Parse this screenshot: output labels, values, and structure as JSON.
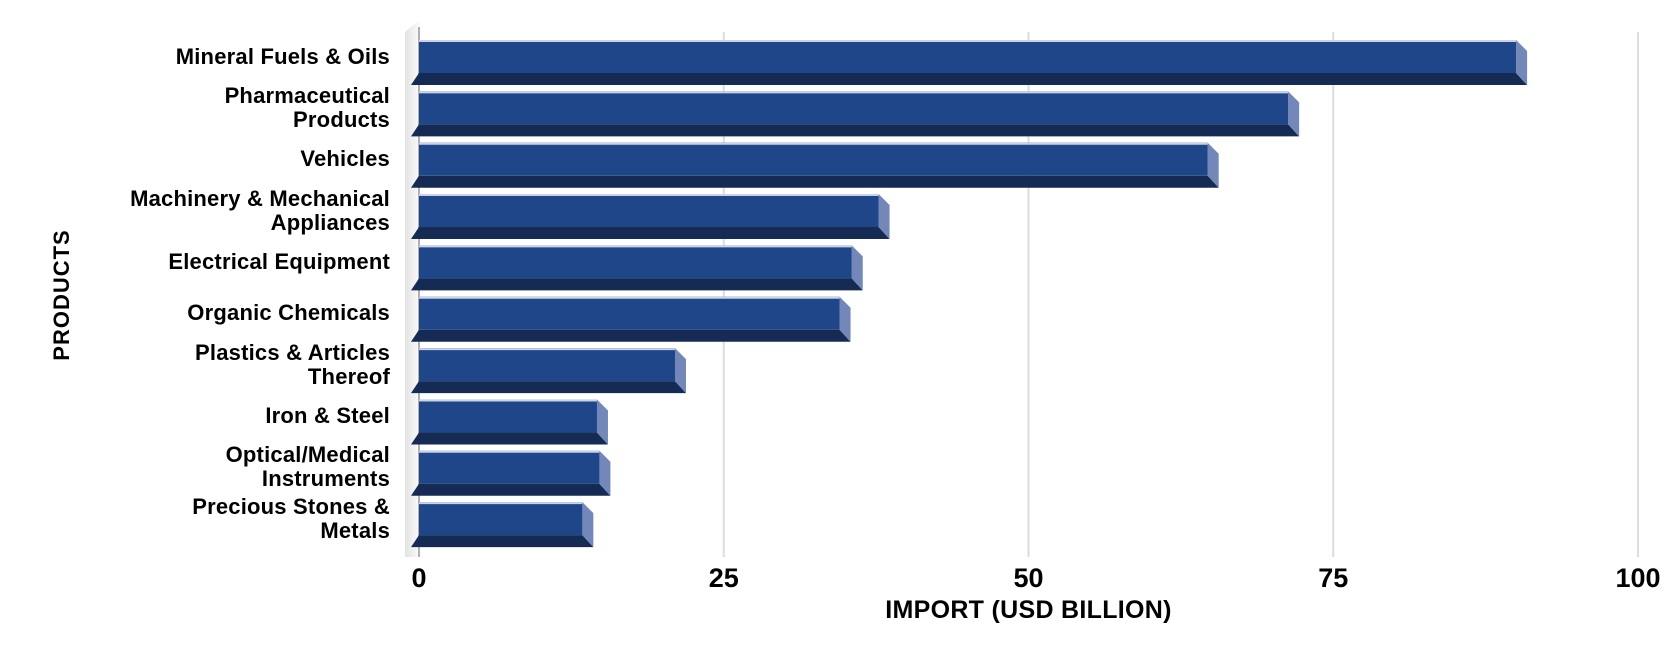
{
  "chart_data": {
    "type": "bar",
    "orientation": "horizontal",
    "title": "",
    "xlabel": "IMPORT (USD BILLION)",
    "ylabel": "PRODUCTS",
    "xlim": [
      0,
      100
    ],
    "x_ticks": [
      "0",
      "25",
      "50",
      "75",
      "100"
    ],
    "x_tick_values": [
      0,
      25,
      50,
      75,
      100
    ],
    "grid": true,
    "legend": false,
    "categories": [
      "Mineral Fuels & Oils",
      "Pharmaceutical Products",
      "Vehicles",
      "Machinery & Mechanical Appliances",
      "Electrical Equipment",
      "Organic Chemicals",
      "Plastics & Articles Thereof",
      "Iron & Steel",
      "Optical/Medical Instruments",
      "Precious Stones & Metals"
    ],
    "label_lines": [
      [
        "Mineral Fuels & Oils"
      ],
      [
        "Pharmaceutical",
        "Products"
      ],
      [
        "Vehicles"
      ],
      [
        "Machinery & Mechanical",
        "Appliances"
      ],
      [
        "Electrical Equipment"
      ],
      [
        "Organic Chemicals"
      ],
      [
        "Plastics & Articles",
        "Thereof"
      ],
      [
        "Iron & Steel"
      ],
      [
        "Optical/Medical",
        "Instruments"
      ],
      [
        "Precious Stones &",
        "Metals"
      ]
    ],
    "values": [
      90,
      71.3,
      64.7,
      37.7,
      35.5,
      34.5,
      21,
      14.6,
      14.8,
      13.4
    ],
    "colors": {
      "bar_fill": "#1F4689",
      "bar_bottom_face": "#152B53",
      "bar_end_face": "#7388B9",
      "bar_top_highlight": "#C9D2E8",
      "gridline": "#DCDCDC",
      "axis_line": "#B0B0B0",
      "wall_dark": "#E3E3E3",
      "wall_light": "#FAFAFA",
      "text": "#000000",
      "background": "#FFFFFF"
    }
  }
}
